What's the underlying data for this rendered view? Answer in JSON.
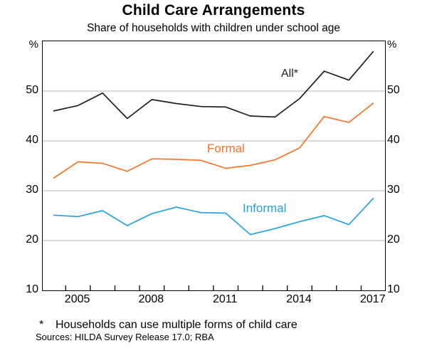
{
  "header": {
    "title": "Child Care Arrangements",
    "subtitle": "Share of households with children under school age"
  },
  "axes": {
    "unit_left": "%",
    "unit_right": "%"
  },
  "annotations": {
    "all_label": "All*",
    "formal_label": "Formal",
    "informal_label": "Informal"
  },
  "footer": {
    "footnote_marker": "*",
    "footnote_text": "Households can use multiple forms of child care",
    "sources_text": "Sources:  HILDA Survey Release 17.0; RBA"
  },
  "chart_data": {
    "type": "line",
    "title": "Child Care Arrangements",
    "subtitle": "Share of households with children under school age",
    "ylabel": "%",
    "ylim": [
      10,
      60
    ],
    "yticks": [
      50,
      40,
      30,
      20,
      10
    ],
    "gridlines": [
      50,
      40,
      30,
      20
    ],
    "grid": true,
    "legend_position": "inline-annotations",
    "x": [
      2004,
      2005,
      2006,
      2007,
      2008,
      2009,
      2010,
      2011,
      2012,
      2013,
      2014,
      2015,
      2016,
      2017
    ],
    "xtick_years": [
      2005,
      2006,
      2007,
      2008,
      2009,
      2010,
      2011,
      2012,
      2013,
      2014,
      2015,
      2016,
      2017
    ],
    "xticklabels": [
      "2005",
      "2008",
      "2011",
      "2014",
      "2017"
    ],
    "colors": {
      "all": "#1f1f1f",
      "formal": "#f4752a",
      "informal": "#24a2dd",
      "grid": "#b5b5b5",
      "frame": "#000000"
    },
    "series": [
      {
        "name": "All*",
        "color": "#1f1f1f",
        "values": [
          46.0,
          47.1,
          49.6,
          44.5,
          48.3,
          47.5,
          46.9,
          46.8,
          45.0,
          44.8,
          48.5,
          54.0,
          52.2,
          58.0
        ]
      },
      {
        "name": "Formal",
        "color": "#f4752a",
        "values": [
          32.5,
          35.8,
          35.5,
          33.9,
          36.4,
          36.3,
          36.1,
          34.5,
          35.1,
          36.2,
          38.6,
          44.9,
          43.7,
          47.6
        ]
      },
      {
        "name": "Informal",
        "color": "#24a2dd",
        "values": [
          25.1,
          24.8,
          26.0,
          23.0,
          25.4,
          26.7,
          25.6,
          25.5,
          21.2,
          22.4,
          23.8,
          25.0,
          23.2,
          28.5
        ]
      }
    ]
  }
}
